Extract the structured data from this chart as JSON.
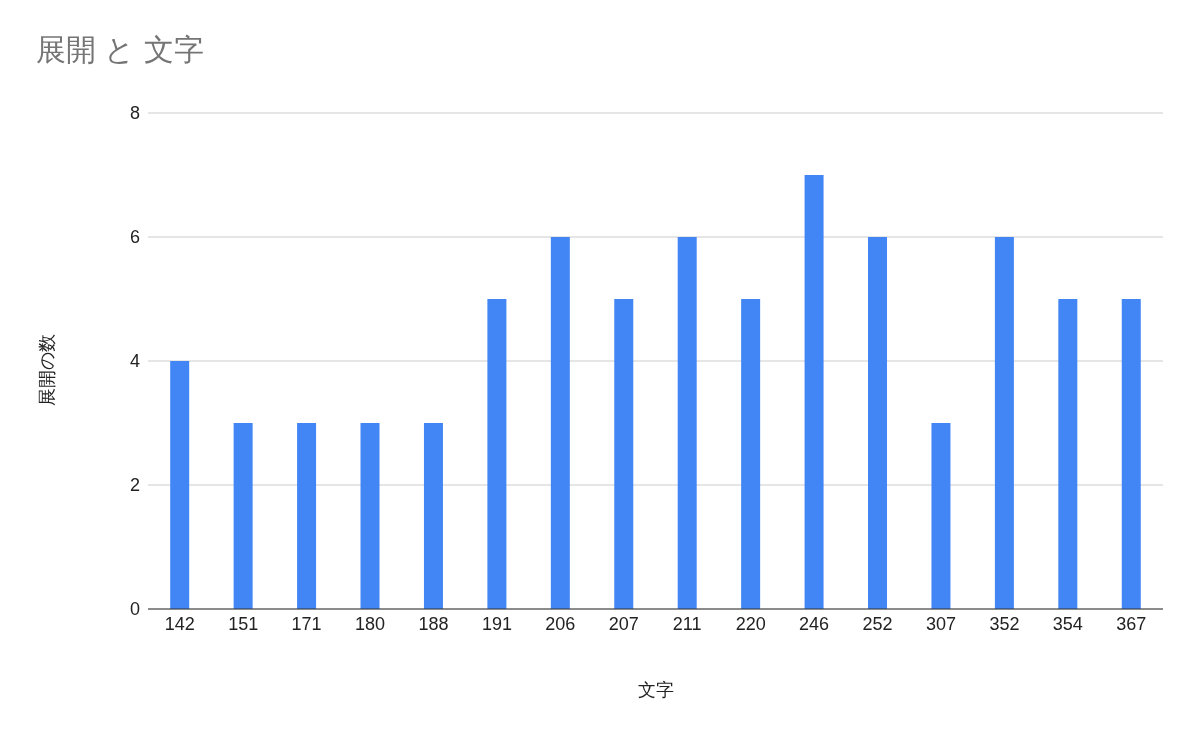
{
  "chart_data": {
    "type": "bar",
    "title": "展開 と 文字",
    "xlabel": "文字",
    "ylabel": "展開の数",
    "categories": [
      "142",
      "151",
      "171",
      "180",
      "188",
      "191",
      "206",
      "207",
      "211",
      "220",
      "246",
      "252",
      "307",
      "352",
      "354",
      "367"
    ],
    "values": [
      4,
      3,
      3,
      3,
      3,
      5,
      6,
      5,
      6,
      5,
      7,
      6,
      3,
      6,
      5,
      5
    ],
    "color": "#4285f4",
    "ylim": [
      0,
      8
    ],
    "yticks": [
      0,
      2,
      4,
      6,
      8
    ],
    "grid": "y",
    "legend": false
  }
}
